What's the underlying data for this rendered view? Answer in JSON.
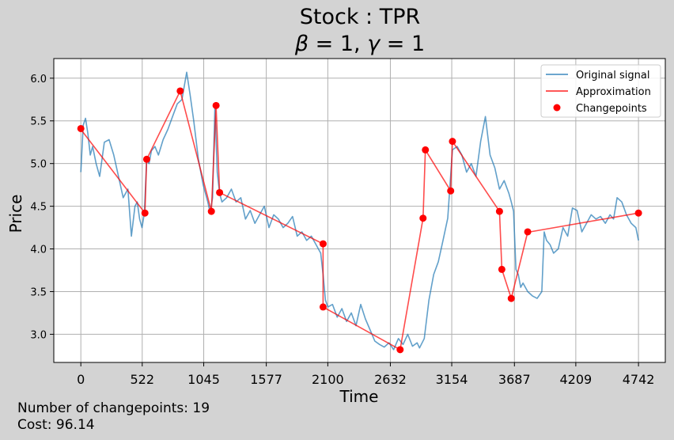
{
  "figure": {
    "title": "Stock : TPR",
    "subtitle_parts": [
      "β",
      " = 1, ",
      "γ",
      " = 1"
    ],
    "footer_changepoints": "Number of changepoints: 19",
    "footer_cost": "Cost: 96.14"
  },
  "colors": {
    "figure_bg": "#d3d3d3",
    "axes_bg": "#ffffff",
    "grid": "#b0b0b0",
    "original_signal": "#1f77b4",
    "approximation": "#ff0000",
    "changepoints": "#ff0000"
  },
  "chart_data": {
    "type": "line",
    "title": "Stock : TPR",
    "xlabel": "Time",
    "ylabel": "Price",
    "xlim": [
      -230,
      4970
    ],
    "ylim": [
      2.67,
      6.23
    ],
    "xticks": [
      0,
      522,
      1045,
      1577,
      2100,
      2632,
      3154,
      3687,
      4209,
      4742
    ],
    "xtick_labels": [
      "0",
      "522",
      "1045",
      "1577",
      "2100",
      "2632",
      "3154",
      "3687",
      "4209",
      "4742"
    ],
    "yticks": [
      3.0,
      3.5,
      4.0,
      4.5,
      5.0,
      5.5,
      6.0
    ],
    "ytick_labels": [
      "3.0",
      "3.5",
      "4.0",
      "4.5",
      "5.0",
      "5.5",
      "6.0"
    ],
    "grid": true,
    "legend_position": "top-right",
    "legend": [
      "Original signal",
      "Approximation",
      "Changepoints"
    ],
    "series": [
      {
        "name": "Original signal",
        "kind": "line",
        "x": [
          0,
          20,
          40,
          60,
          80,
          100,
          130,
          160,
          200,
          240,
          280,
          320,
          360,
          400,
          430,
          460,
          480,
          500,
          520,
          540,
          560,
          580,
          600,
          630,
          660,
          700,
          740,
          780,
          820,
          860,
          900,
          930,
          960,
          1000,
          1040,
          1080,
          1100,
          1120,
          1140,
          1160,
          1180,
          1200,
          1240,
          1280,
          1320,
          1360,
          1400,
          1440,
          1480,
          1520,
          1560,
          1600,
          1640,
          1680,
          1720,
          1760,
          1800,
          1840,
          1880,
          1920,
          1960,
          2000,
          2040,
          2060,
          2080,
          2100,
          2140,
          2180,
          2220,
          2260,
          2300,
          2340,
          2380,
          2420,
          2460,
          2500,
          2540,
          2580,
          2620,
          2660,
          2700,
          2740,
          2780,
          2820,
          2860,
          2880,
          2920,
          2960,
          3000,
          3040,
          3080,
          3120,
          3160,
          3200,
          3240,
          3280,
          3320,
          3360,
          3400,
          3440,
          3480,
          3520,
          3560,
          3600,
          3640,
          3660,
          3680,
          3700,
          3720,
          3740,
          3760,
          3800,
          3840,
          3880,
          3920,
          3940,
          3960,
          3990,
          4020,
          4060,
          4100,
          4140,
          4180,
          4220,
          4260,
          4300,
          4340,
          4380,
          4420,
          4460,
          4500,
          4530,
          4560,
          4600,
          4640,
          4680,
          4720,
          4742
        ],
        "y": [
          4.9,
          5.45,
          5.53,
          5.35,
          5.1,
          5.2,
          5.0,
          4.85,
          5.25,
          5.28,
          5.1,
          4.85,
          4.6,
          4.7,
          4.15,
          4.5,
          4.55,
          4.35,
          4.25,
          4.42,
          5.05,
          5.0,
          5.15,
          5.2,
          5.1,
          5.28,
          5.4,
          5.55,
          5.7,
          5.75,
          6.07,
          5.8,
          5.5,
          5.05,
          4.75,
          4.55,
          4.42,
          4.6,
          5.68,
          4.9,
          4.65,
          4.55,
          4.6,
          4.7,
          4.55,
          4.6,
          4.35,
          4.45,
          4.3,
          4.4,
          4.5,
          4.25,
          4.4,
          4.35,
          4.25,
          4.3,
          4.38,
          4.15,
          4.2,
          4.1,
          4.15,
          4.05,
          3.95,
          3.7,
          3.4,
          3.32,
          3.35,
          3.2,
          3.3,
          3.15,
          3.25,
          3.1,
          3.35,
          3.18,
          3.05,
          2.92,
          2.88,
          2.85,
          2.9,
          2.82,
          2.95,
          2.88,
          3.0,
          2.86,
          2.9,
          2.84,
          2.95,
          3.4,
          3.7,
          3.85,
          4.1,
          4.36,
          5.16,
          5.2,
          5.1,
          4.9,
          5.0,
          4.85,
          5.26,
          5.55,
          5.1,
          4.95,
          4.7,
          4.8,
          4.65,
          4.55,
          4.44,
          3.76,
          3.7,
          3.55,
          3.6,
          3.5,
          3.45,
          3.42,
          3.5,
          4.2,
          4.1,
          4.05,
          3.95,
          4.0,
          4.25,
          4.15,
          4.48,
          4.45,
          4.2,
          4.3,
          4.4,
          4.35,
          4.38,
          4.3,
          4.4,
          4.35,
          4.6,
          4.55,
          4.4,
          4.3,
          4.25,
          4.1
        ]
      },
      {
        "name": "Approximation",
        "kind": "line",
        "x": [
          0,
          545,
          545,
          560,
          560,
          845,
          845,
          1110,
          1110,
          1150,
          1150,
          1180,
          1180,
          2060,
          2060,
          2060,
          2060,
          2715,
          2715,
          2910,
          2910,
          2930,
          2930,
          3145,
          3145,
          3160,
          3160,
          3560,
          3560,
          3580,
          3580,
          3660,
          3660,
          3800,
          3800,
          3820,
          3820,
          4742
        ],
        "y": [
          5.4,
          4.42,
          4.42,
          5.05,
          5.05,
          5.85,
          5.85,
          4.44,
          4.44,
          5.68,
          5.68,
          4.66,
          4.66,
          4.06,
          4.06,
          3.32,
          3.32,
          2.82,
          2.82,
          4.36,
          4.36,
          5.16,
          5.16,
          4.68,
          4.68,
          5.26,
          5.26,
          4.44,
          4.44,
          3.76,
          3.76,
          3.42,
          3.42,
          4.2,
          4.2,
          4.2,
          4.2,
          4.42
        ]
      },
      {
        "name": "Changepoints",
        "kind": "scatter",
        "x": [
          0,
          545,
          560,
          845,
          1110,
          1150,
          1180,
          2060,
          2060,
          2715,
          2910,
          2930,
          3145,
          3160,
          3560,
          3580,
          3660,
          3800,
          4742
        ],
        "y": [
          5.41,
          4.42,
          5.05,
          5.85,
          4.44,
          5.68,
          4.66,
          4.06,
          3.32,
          2.82,
          4.36,
          5.16,
          4.68,
          5.26,
          4.44,
          3.76,
          3.42,
          4.2,
          4.42
        ]
      }
    ]
  }
}
